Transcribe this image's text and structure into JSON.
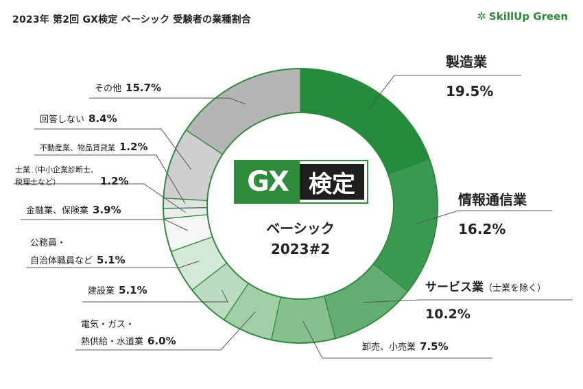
{
  "header": {
    "title": "2023年 第2回 GX検定 ベーシック 受験者の業種割合",
    "brand": "SkillUp Green"
  },
  "center": {
    "logo_gx": "GX",
    "logo_kentei": "検定",
    "line1": "ベーシック",
    "line2": "2023#2"
  },
  "chart_data": {
    "type": "pie",
    "title": "2023年 第2回 GX検定 ベーシック 受験者の業種割合",
    "donut": true,
    "slices": [
      {
        "label": "製造業",
        "value": 19.5,
        "display": "19.5%",
        "color": "#228b3c"
      },
      {
        "label": "情報通信業",
        "value": 16.2,
        "display": "16.2%",
        "color": "#3b9a52"
      },
      {
        "label": "サービス業",
        "sub": "（士業を除く）",
        "value": 10.2,
        "display": "10.2%",
        "color": "#63ad72"
      },
      {
        "label": "卸売、小売業",
        "value": 7.5,
        "display": "7.5%",
        "color": "#86c090"
      },
      {
        "label": "電気・ガス・熱供給・水道業",
        "line1": "電気・ガス・",
        "line2": "熱供給・水道業",
        "value": 6.0,
        "display": "6.0%",
        "color": "#a1cfa8"
      },
      {
        "label": "建設業",
        "value": 5.1,
        "display": "5.1%",
        "color": "#bcdcc1"
      },
      {
        "label": "公務員・自治体職員など",
        "line1": "公務員・",
        "line2": "自治体職員など",
        "value": 5.1,
        "display": "5.1%",
        "color": "#d5e9d8"
      },
      {
        "label": "金融業、保険業",
        "value": 3.9,
        "display": "3.9%",
        "color": "#f6f6f6"
      },
      {
        "label": "士業（中小企業診断士、税理士など）",
        "line1": "士業（中小企業診断士、",
        "line2": "税理士など）",
        "value": 1.2,
        "display": "1.2%",
        "color": "#ececec"
      },
      {
        "label": "不動産業、物品賃貸業",
        "value": 1.2,
        "display": "1.2%",
        "color": "#e2e2e2"
      },
      {
        "label": "回答しない",
        "value": 8.4,
        "display": "8.4%",
        "color": "#cfcfcf"
      },
      {
        "label": "その他",
        "value": 15.7,
        "display": "15.7%",
        "color": "#b5b5b5"
      }
    ]
  }
}
